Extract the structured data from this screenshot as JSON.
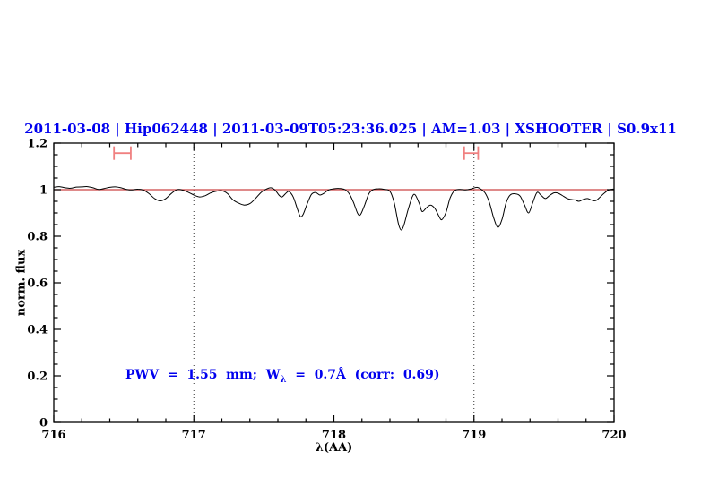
{
  "chart_data": {
    "type": "line",
    "title": "2011-03-08 | Hip062448 | 2011-03-09T05:23:36.025 | AM=1.03 | XSHOOTER | S0.9x11",
    "title_color": "#0000ee",
    "xlabel": "λ(AA)",
    "ylabel": "norm. flux",
    "xlim": [
      716,
      720
    ],
    "ylim": [
      0,
      1.2
    ],
    "grid": "off",
    "legend": "none",
    "x_ticks": {
      "major": [
        716,
        717,
        718,
        719,
        720
      ],
      "labels": [
        "716",
        "717",
        "718",
        "719",
        "720"
      ],
      "minor_step": 0.2
    },
    "y_ticks": {
      "major": [
        0,
        0.2,
        0.4,
        0.6,
        0.8,
        1,
        1.2
      ],
      "labels": [
        "0",
        "0.2",
        "0.4",
        "0.6",
        "0.8",
        "1",
        "1.2"
      ],
      "minor_step": 0.05
    },
    "dotted_vlines": [
      717,
      719
    ],
    "reference_line": {
      "y": 1.0,
      "color": "#cc4444"
    },
    "marker_color": "#f08080",
    "interval_markers": [
      {
        "x1": 716.43,
        "x2": 716.55,
        "y": 1.157,
        "cap_half": 0.029
      },
      {
        "x1": 718.93,
        "x2": 719.03,
        "y": 1.157,
        "cap_half": 0.029
      }
    ],
    "annotation": {
      "prefix": "PWV  =  1.55  mm;  W",
      "sub": "λ",
      "suffix": "  =  0.7Å  (corr:  0.69)",
      "color": "#0000ee",
      "x": 716.51,
      "y": 0.2
    },
    "series": [
      {
        "name": "spectrum",
        "color": "#000000",
        "points": [
          [
            716.0,
            1.01
          ],
          [
            716.04,
            1.013
          ],
          [
            716.08,
            1.008
          ],
          [
            716.12,
            1.006
          ],
          [
            716.16,
            1.011
          ],
          [
            716.2,
            1.012
          ],
          [
            716.24,
            1.013
          ],
          [
            716.28,
            1.008
          ],
          [
            716.32,
            1.001
          ],
          [
            716.36,
            1.005
          ],
          [
            716.4,
            1.01
          ],
          [
            716.44,
            1.012
          ],
          [
            716.48,
            1.008
          ],
          [
            716.52,
            1.001
          ],
          [
            716.56,
            0.999
          ],
          [
            716.6,
            1.002
          ],
          [
            716.64,
            0.998
          ],
          [
            716.68,
            0.983
          ],
          [
            716.72,
            0.962
          ],
          [
            716.76,
            0.952
          ],
          [
            716.8,
            0.962
          ],
          [
            716.84,
            0.984
          ],
          [
            716.88,
            1.0
          ],
          [
            716.92,
            0.998
          ],
          [
            716.96,
            0.989
          ],
          [
            717.0,
            0.977
          ],
          [
            717.04,
            0.969
          ],
          [
            717.08,
            0.974
          ],
          [
            717.12,
            0.986
          ],
          [
            717.16,
            0.993
          ],
          [
            717.2,
            0.995
          ],
          [
            717.24,
            0.983
          ],
          [
            717.28,
            0.956
          ],
          [
            717.32,
            0.942
          ],
          [
            717.36,
            0.934
          ],
          [
            717.4,
            0.94
          ],
          [
            717.44,
            0.962
          ],
          [
            717.48,
            0.988
          ],
          [
            717.52,
            1.003
          ],
          [
            717.55,
            1.008
          ],
          [
            717.58,
            0.998
          ],
          [
            717.61,
            0.975
          ],
          [
            717.63,
            0.969
          ],
          [
            717.66,
            0.986
          ],
          [
            717.68,
            0.992
          ],
          [
            717.71,
            0.968
          ],
          [
            717.74,
            0.915
          ],
          [
            717.76,
            0.885
          ],
          [
            717.78,
            0.893
          ],
          [
            717.81,
            0.94
          ],
          [
            717.84,
            0.98
          ],
          [
            717.87,
            0.988
          ],
          [
            717.9,
            0.977
          ],
          [
            717.93,
            0.985
          ],
          [
            717.96,
            0.998
          ],
          [
            718.0,
            1.004
          ],
          [
            718.04,
            1.005
          ],
          [
            718.08,
            1.0
          ],
          [
            718.11,
            0.982
          ],
          [
            718.14,
            0.945
          ],
          [
            718.17,
            0.897
          ],
          [
            718.19,
            0.893
          ],
          [
            718.22,
            0.935
          ],
          [
            718.25,
            0.983
          ],
          [
            718.28,
            1.0
          ],
          [
            718.32,
            1.004
          ],
          [
            718.36,
            1.001
          ],
          [
            718.4,
            0.993
          ],
          [
            718.43,
            0.945
          ],
          [
            718.46,
            0.855
          ],
          [
            718.48,
            0.827
          ],
          [
            718.5,
            0.848
          ],
          [
            718.53,
            0.915
          ],
          [
            718.56,
            0.97
          ],
          [
            718.58,
            0.978
          ],
          [
            718.61,
            0.94
          ],
          [
            718.63,
            0.906
          ],
          [
            718.66,
            0.922
          ],
          [
            718.69,
            0.934
          ],
          [
            718.72,
            0.92
          ],
          [
            718.75,
            0.886
          ],
          [
            718.77,
            0.871
          ],
          [
            718.8,
            0.902
          ],
          [
            718.83,
            0.965
          ],
          [
            718.86,
            0.995
          ],
          [
            718.9,
            1.001
          ],
          [
            718.94,
            0.999
          ],
          [
            718.98,
            1.003
          ],
          [
            719.02,
            1.01
          ],
          [
            719.05,
            1.002
          ],
          [
            719.08,
            0.985
          ],
          [
            719.11,
            0.945
          ],
          [
            719.14,
            0.88
          ],
          [
            719.17,
            0.838
          ],
          [
            719.2,
            0.872
          ],
          [
            719.23,
            0.945
          ],
          [
            719.26,
            0.978
          ],
          [
            719.3,
            0.982
          ],
          [
            719.33,
            0.972
          ],
          [
            719.36,
            0.935
          ],
          [
            719.39,
            0.9
          ],
          [
            719.42,
            0.945
          ],
          [
            719.45,
            0.988
          ],
          [
            719.48,
            0.975
          ],
          [
            719.51,
            0.962
          ],
          [
            719.54,
            0.975
          ],
          [
            719.57,
            0.986
          ],
          [
            719.6,
            0.985
          ],
          [
            719.63,
            0.975
          ],
          [
            719.66,
            0.964
          ],
          [
            719.69,
            0.958
          ],
          [
            719.72,
            0.956
          ],
          [
            719.75,
            0.95
          ],
          [
            719.78,
            0.958
          ],
          [
            719.81,
            0.962
          ],
          [
            719.84,
            0.955
          ],
          [
            719.87,
            0.953
          ],
          [
            719.9,
            0.968
          ],
          [
            719.93,
            0.985
          ],
          [
            719.96,
            0.998
          ],
          [
            720.0,
            1.003
          ]
        ]
      }
    ]
  }
}
